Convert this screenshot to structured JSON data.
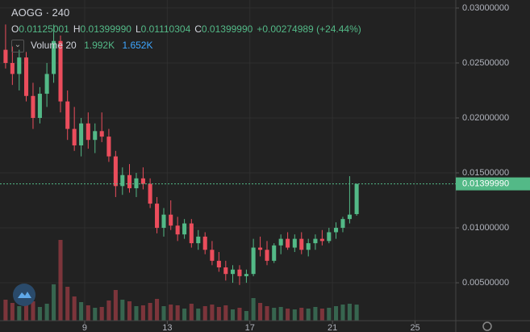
{
  "chart_data": {
    "type": "candlestick",
    "symbol": "AOGG · 240",
    "ohlc_legend": [
      {
        "label": "O",
        "value": "0.01125001"
      },
      {
        "label": "H",
        "value": "0.01399990"
      },
      {
        "label": "L",
        "value": "0.01110304"
      },
      {
        "label": "C",
        "value": "0.01399990"
      }
    ],
    "change": "+0.00274989 (+24.44%)",
    "volume_legend": {
      "name": "Volume 20",
      "value": "1.992K",
      "ma": "1.652K"
    },
    "up_color": "#53b987",
    "down_color": "#eb4d5c",
    "x": [
      5.17,
      5.5,
      5.83,
      6.17,
      6.5,
      6.83,
      7.17,
      7.5,
      7.83,
      8.17,
      8.5,
      8.83,
      9.17,
      9.5,
      9.83,
      10.17,
      10.5,
      10.83,
      11.17,
      11.5,
      11.83,
      12.17,
      12.5,
      12.83,
      13.17,
      13.5,
      13.83,
      14.17,
      14.5,
      14.83,
      15.17,
      15.5,
      15.83,
      16.17,
      16.5,
      16.83,
      17.17,
      17.5,
      17.83,
      18.17,
      18.5,
      18.83,
      19.17,
      19.5,
      19.83,
      20.17,
      20.5,
      20.83,
      21.17,
      21.5,
      21.83,
      22.17
    ],
    "open": [
      0.0262,
      0.025,
      0.024,
      0.0255,
      0.022,
      0.02,
      0.0222,
      0.024,
      0.027,
      0.0215,
      0.019,
      0.0175,
      0.0195,
      0.018,
      0.0188,
      0.0183,
      0.0165,
      0.0138,
      0.0148,
      0.0136,
      0.0145,
      0.014,
      0.0122,
      0.01,
      0.0112,
      0.0102,
      0.0094,
      0.0104,
      0.0086,
      0.0092,
      0.008,
      0.007,
      0.0064,
      0.0058,
      0.0062,
      0.0056,
      0.0058,
      0.0082,
      0.008,
      0.007,
      0.0084,
      0.009,
      0.0082,
      0.009,
      0.008,
      0.0086,
      0.009,
      0.0088,
      0.0096,
      0.01,
      0.0108,
      0.01125001
    ],
    "high": [
      0.0285,
      0.0265,
      0.0262,
      0.026,
      0.0232,
      0.0228,
      0.025,
      0.0285,
      0.0275,
      0.0225,
      0.021,
      0.02,
      0.0205,
      0.0195,
      0.0205,
      0.019,
      0.017,
      0.0155,
      0.0158,
      0.015,
      0.0155,
      0.0145,
      0.0128,
      0.0118,
      0.0125,
      0.011,
      0.0108,
      0.0108,
      0.0098,
      0.0096,
      0.0088,
      0.0078,
      0.007,
      0.0066,
      0.0066,
      0.0062,
      0.009,
      0.0092,
      0.0088,
      0.0086,
      0.0094,
      0.0096,
      0.0094,
      0.0096,
      0.009,
      0.0094,
      0.0098,
      0.01,
      0.0105,
      0.011,
      0.0147,
      0.0139999
    ],
    "low": [
      0.0245,
      0.023,
      0.0225,
      0.0215,
      0.019,
      0.0195,
      0.021,
      0.0232,
      0.0205,
      0.018,
      0.017,
      0.0165,
      0.0172,
      0.0168,
      0.0178,
      0.016,
      0.0128,
      0.013,
      0.0132,
      0.0128,
      0.0135,
      0.0118,
      0.0095,
      0.0092,
      0.0098,
      0.0088,
      0.009,
      0.0082,
      0.008,
      0.0076,
      0.0066,
      0.006,
      0.0052,
      0.005,
      0.0048,
      0.005,
      0.0056,
      0.0074,
      0.0066,
      0.0068,
      0.0076,
      0.008,
      0.0078,
      0.0076,
      0.0074,
      0.008,
      0.0084,
      0.0086,
      0.009,
      0.0096,
      0.0104,
      0.01110304
    ],
    "close": [
      0.025,
      0.024,
      0.0255,
      0.022,
      0.02,
      0.0222,
      0.024,
      0.027,
      0.0215,
      0.019,
      0.0175,
      0.0195,
      0.018,
      0.0188,
      0.0183,
      0.0165,
      0.0138,
      0.0148,
      0.0136,
      0.0145,
      0.014,
      0.0122,
      0.01,
      0.0112,
      0.0102,
      0.0094,
      0.0104,
      0.0086,
      0.0092,
      0.008,
      0.007,
      0.0064,
      0.0058,
      0.0062,
      0.0056,
      0.0058,
      0.0082,
      0.008,
      0.007,
      0.0084,
      0.009,
      0.0082,
      0.009,
      0.008,
      0.0086,
      0.009,
      0.0088,
      0.0096,
      0.01,
      0.0108,
      0.0112,
      0.0139999
    ],
    "volume": [
      2600,
      2200,
      1800,
      2000,
      2400,
      1700,
      2100,
      4500,
      10000,
      4200,
      3000,
      2300,
      1900,
      1600,
      1700,
      2500,
      3800,
      2600,
      2400,
      1800,
      1900,
      2200,
      2700,
      1800,
      2000,
      1900,
      1500,
      2100,
      1500,
      1800,
      2000,
      1700,
      1900,
      1400,
      1600,
      1200,
      2800,
      2200,
      1800,
      1600,
      1700,
      1500,
      1400,
      1600,
      1500,
      1700,
      1500,
      1600,
      1800,
      2000,
      2100,
      1992
    ],
    "last_price": {
      "value": 0.0139999,
      "label": "0.01399990"
    },
    "xlim": [
      4.9,
      26.97
    ],
    "xticks": [
      9,
      13,
      17,
      21,
      25
    ],
    "ylim": [
      0.00155,
      0.03073
    ],
    "yticks": [
      {
        "value": 0.005,
        "label": "0.00500000"
      },
      {
        "value": 0.01,
        "label": "0.01000000"
      },
      {
        "value": 0.015,
        "label": "0.01500000"
      },
      {
        "value": 0.02,
        "label": "0.02000000"
      },
      {
        "value": 0.025,
        "label": "0.02500000"
      },
      {
        "value": 0.03,
        "label": "0.03000000"
      }
    ],
    "grid": true
  }
}
